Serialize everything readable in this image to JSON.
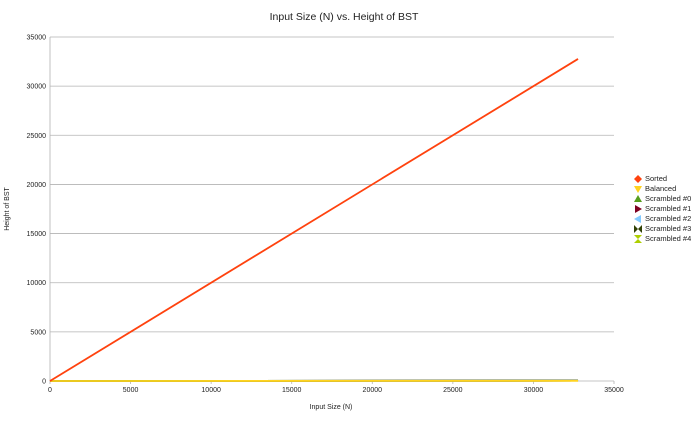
{
  "chart_data": {
    "type": "line",
    "title": "Input Size (N) vs. Height of BST",
    "xlabel": "Input Size (N)",
    "ylabel": "Height of BST",
    "xlim": [
      0,
      35000
    ],
    "ylim": [
      0,
      35000
    ],
    "xticks": [
      "0",
      "5000",
      "10000",
      "15000",
      "20000",
      "25000",
      "30000",
      "35000"
    ],
    "yticks": [
      "0",
      "5000",
      "10000",
      "15000",
      "20000",
      "25000",
      "30000",
      "35000"
    ],
    "grid": "horizontal",
    "legend_position": "right",
    "series": [
      {
        "name": "Sorted",
        "color": "#ff420e",
        "marker": "diamond",
        "x": [
          0,
          32767
        ],
        "y": [
          0,
          32767
        ]
      },
      {
        "name": "Balanced",
        "color": "#ffd320",
        "marker": "triangle-down",
        "x": [
          0,
          32767
        ],
        "y": [
          0,
          15
        ]
      },
      {
        "name": "Scrambled #0",
        "color": "#579d1c",
        "marker": "triangle-up",
        "x": [
          0,
          32767
        ],
        "y": [
          0,
          35
        ]
      },
      {
        "name": "Scrambled #1",
        "color": "#7e0021",
        "marker": "triangle-right",
        "x": [
          0,
          32767
        ],
        "y": [
          0,
          35
        ]
      },
      {
        "name": "Scrambled #2",
        "color": "#83caff",
        "marker": "triangle-left",
        "x": [
          0,
          32767
        ],
        "y": [
          0,
          35
        ]
      },
      {
        "name": "Scrambled #3",
        "color": "#314004",
        "marker": "bowtie",
        "x": [
          0,
          32767
        ],
        "y": [
          0,
          35
        ]
      },
      {
        "name": "Scrambled #4",
        "color": "#aecf00",
        "marker": "hourglass",
        "x": [
          0,
          32767
        ],
        "y": [
          0,
          35
        ]
      }
    ]
  }
}
